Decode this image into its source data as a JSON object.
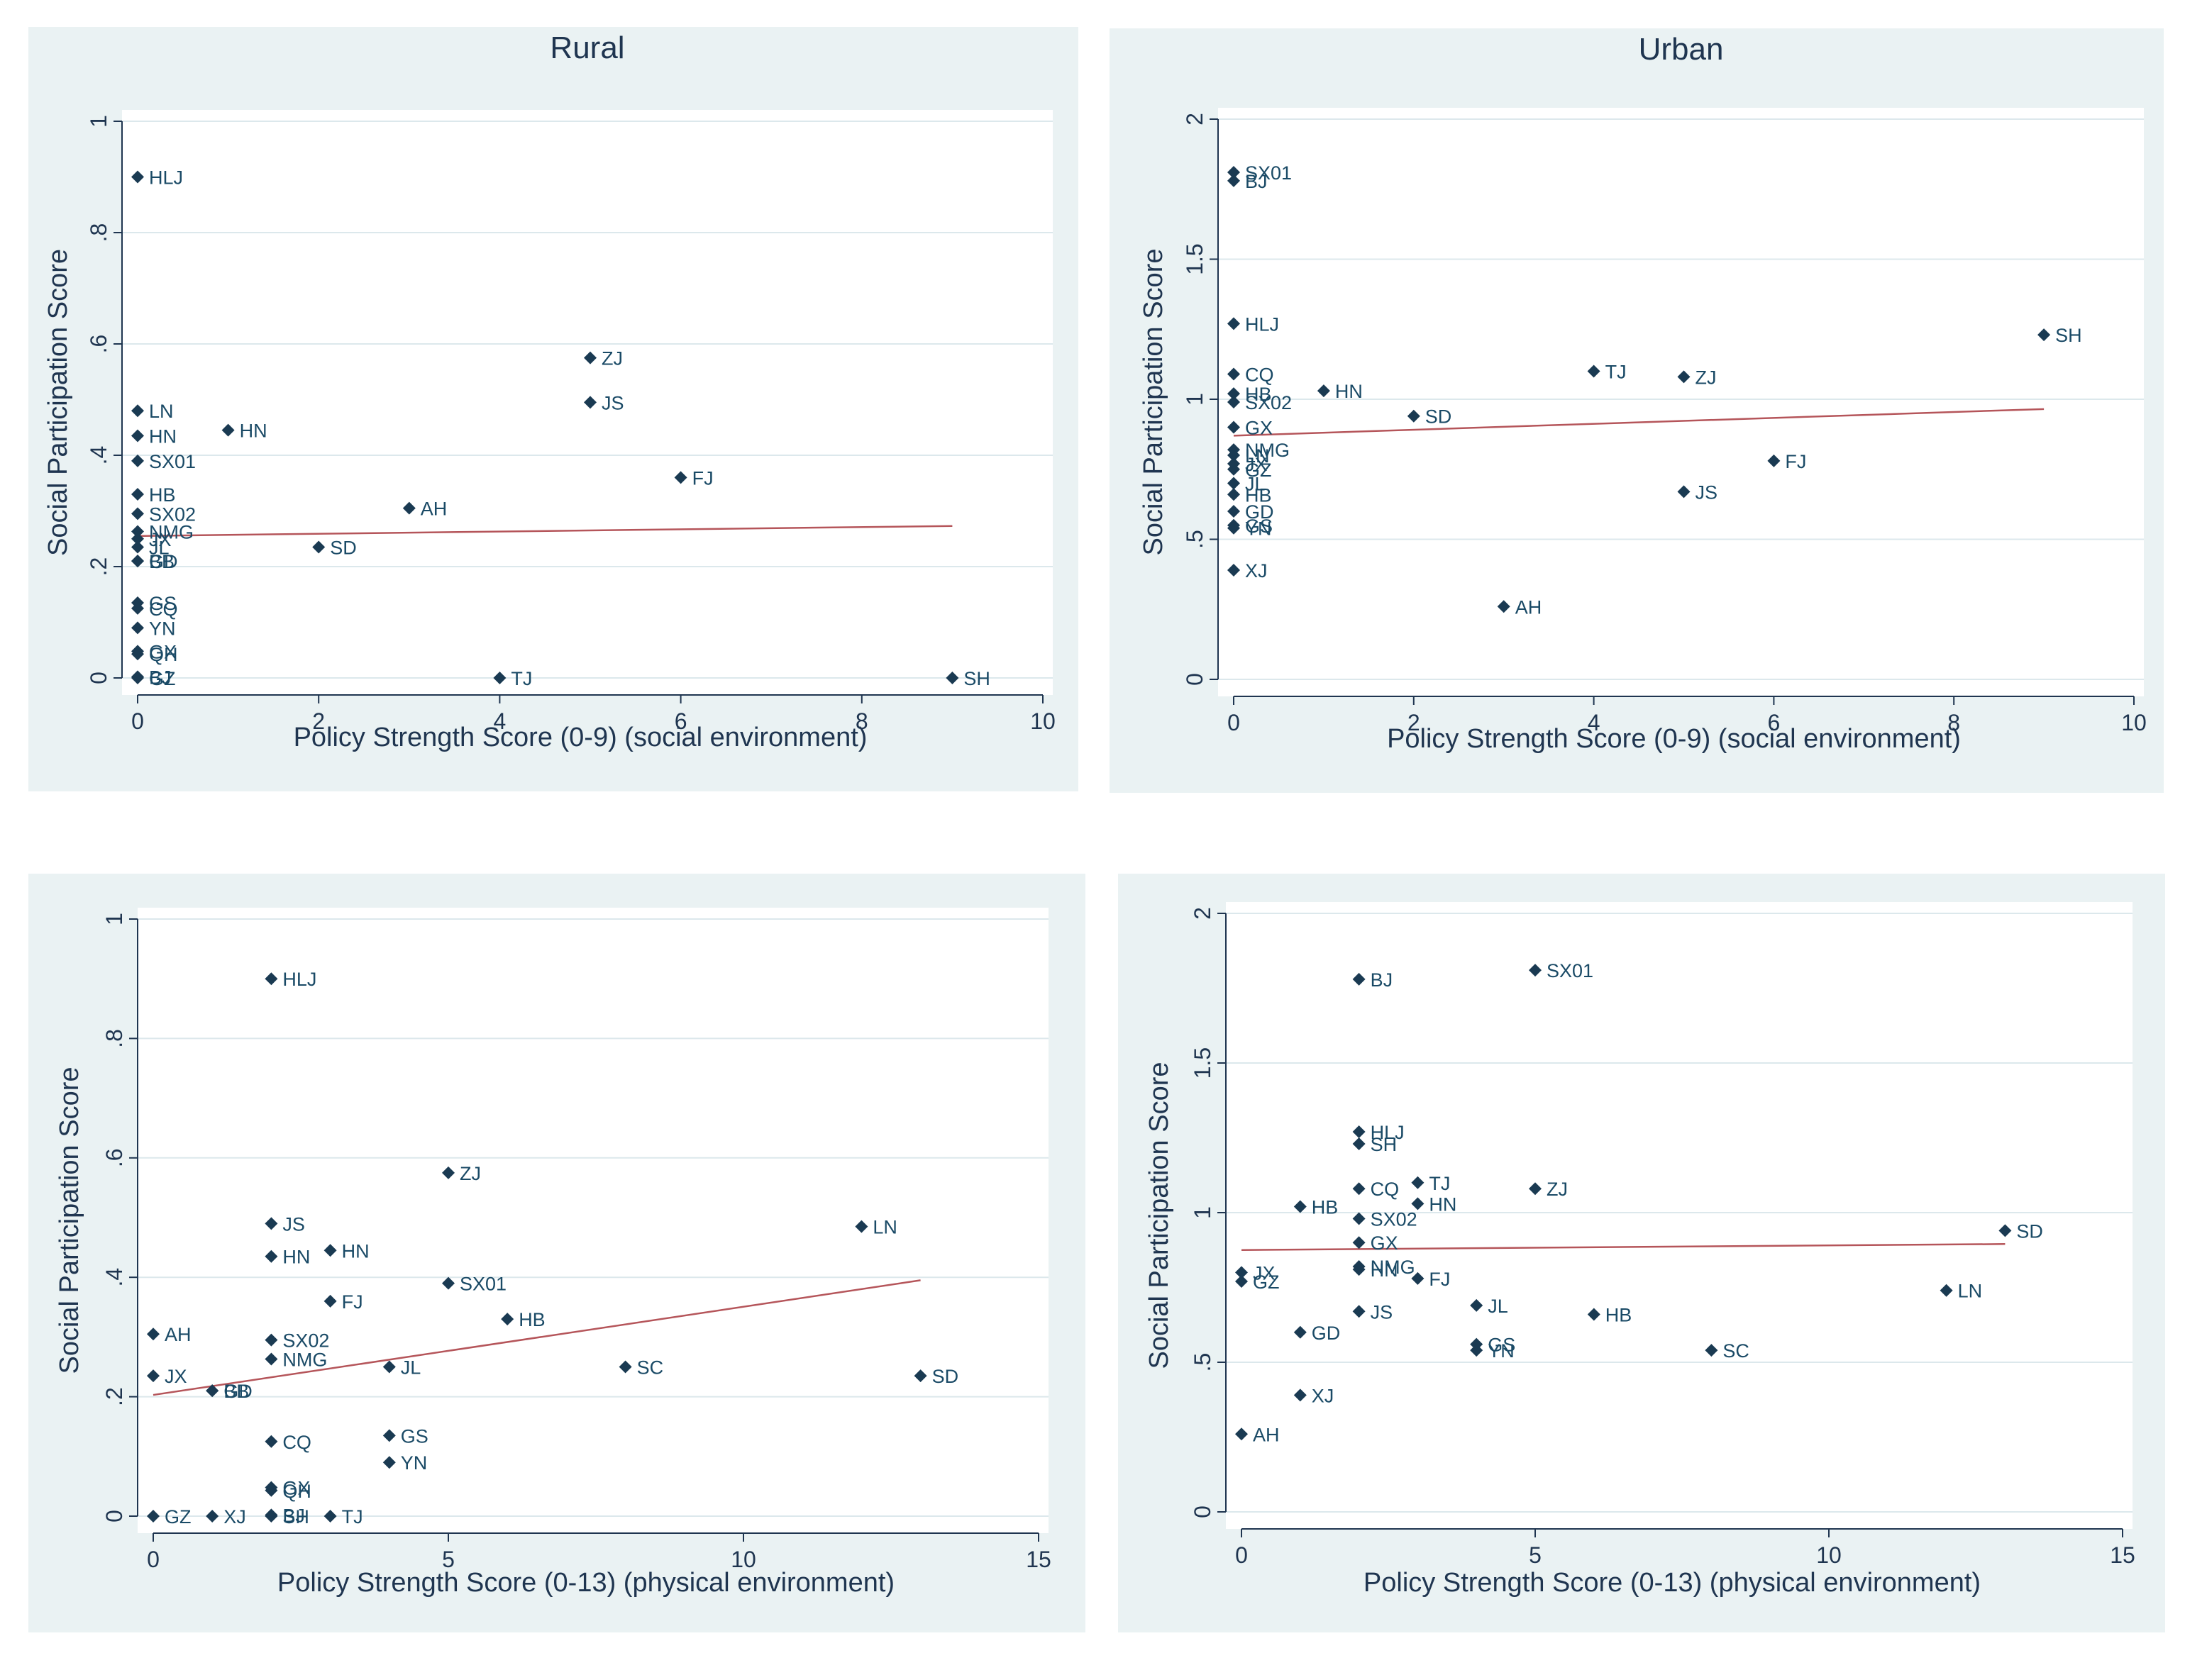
{
  "chart_data": [
    {
      "type": "scatter",
      "title": "Rural",
      "xlabel": "Policy Strength Score (0-9)  (social environment)",
      "ylabel": "Social Participation Score",
      "xlim": [
        0,
        10
      ],
      "ylim": [
        0,
        1
      ],
      "xticks": [
        {
          "v": 0,
          "label": "0"
        },
        {
          "v": 2,
          "label": "2"
        },
        {
          "v": 4,
          "label": "4"
        },
        {
          "v": 6,
          "label": "6"
        },
        {
          "v": 8,
          "label": "8"
        },
        {
          "v": 10,
          "label": "10"
        }
      ],
      "yticks": [
        {
          "v": 0,
          "label": "0"
        },
        {
          "v": 0.2,
          "label": ".2"
        },
        {
          "v": 0.4,
          "label": ".4"
        },
        {
          "v": 0.6,
          "label": ".6"
        },
        {
          "v": 0.8,
          "label": ".8"
        },
        {
          "v": 1,
          "label": "1"
        }
      ],
      "fit": {
        "x0": 0,
        "y0": 0.255,
        "x1": 9,
        "y1": 0.273
      },
      "points": [
        {
          "x": 0,
          "y": 0.9,
          "label": "HLJ"
        },
        {
          "x": 0,
          "y": 0.48,
          "label": "LN"
        },
        {
          "x": 0,
          "y": 0.435,
          "label": "HN"
        },
        {
          "x": 0,
          "y": 0.39,
          "label": "SX01"
        },
        {
          "x": 0,
          "y": 0.33,
          "label": "HB"
        },
        {
          "x": 0,
          "y": 0.295,
          "label": "SX02"
        },
        {
          "x": 0,
          "y": 0.263,
          "label": "NMG"
        },
        {
          "x": 0,
          "y": 0.25,
          "label": "JX"
        },
        {
          "x": 0,
          "y": 0.235,
          "label": "JL"
        },
        {
          "x": 0,
          "y": 0.21,
          "label": "BB"
        },
        {
          "x": 0,
          "y": 0.21,
          "label": "GD"
        },
        {
          "x": 0,
          "y": 0.135,
          "label": "GS"
        },
        {
          "x": 0,
          "y": 0.125,
          "label": "CQ"
        },
        {
          "x": 0,
          "y": 0.09,
          "label": "YN"
        },
        {
          "x": 0,
          "y": 0.048,
          "label": "GX"
        },
        {
          "x": 0,
          "y": 0.043,
          "label": "QH"
        },
        {
          "x": 0,
          "y": 0.002,
          "label": "BJ"
        },
        {
          "x": 0,
          "y": 0.0,
          "label": "GZ"
        },
        {
          "x": 1,
          "y": 0.445,
          "label": "HN"
        },
        {
          "x": 2,
          "y": 0.235,
          "label": "SD"
        },
        {
          "x": 3,
          "y": 0.305,
          "label": "AH"
        },
        {
          "x": 4,
          "y": 0.0,
          "label": "TJ"
        },
        {
          "x": 5,
          "y": 0.575,
          "label": "ZJ"
        },
        {
          "x": 5,
          "y": 0.495,
          "label": "JS"
        },
        {
          "x": 6,
          "y": 0.36,
          "label": "FJ"
        },
        {
          "x": 9,
          "y": 0.0,
          "label": "SH"
        }
      ]
    },
    {
      "type": "scatter",
      "title": "Urban",
      "xlabel": "Policy Strength Score (0-9)  (social environment)",
      "ylabel": "Social Participation Score",
      "xlim": [
        0,
        10
      ],
      "ylim": [
        0,
        2
      ],
      "xticks": [
        {
          "v": 0,
          "label": "0"
        },
        {
          "v": 2,
          "label": "2"
        },
        {
          "v": 4,
          "label": "4"
        },
        {
          "v": 6,
          "label": "6"
        },
        {
          "v": 8,
          "label": "8"
        },
        {
          "v": 10,
          "label": "10"
        }
      ],
      "yticks": [
        {
          "v": 0,
          "label": "0"
        },
        {
          "v": 0.5,
          "label": ".5"
        },
        {
          "v": 1,
          "label": "1"
        },
        {
          "v": 1.5,
          "label": "1.5"
        },
        {
          "v": 2,
          "label": "2"
        }
      ],
      "fit": {
        "x0": 0,
        "y0": 0.87,
        "x1": 9,
        "y1": 0.965
      },
      "points": [
        {
          "x": 0,
          "y": 1.81,
          "label": "SX01"
        },
        {
          "x": 0,
          "y": 1.78,
          "label": "BJ"
        },
        {
          "x": 0,
          "y": 1.27,
          "label": "HLJ"
        },
        {
          "x": 0,
          "y": 1.09,
          "label": "CQ"
        },
        {
          "x": 0,
          "y": 1.02,
          "label": "HB"
        },
        {
          "x": 0,
          "y": 0.99,
          "label": "SX02"
        },
        {
          "x": 0,
          "y": 0.9,
          "label": "GX"
        },
        {
          "x": 0,
          "y": 0.82,
          "label": "NMG"
        },
        {
          "x": 0,
          "y": 0.8,
          "label": "LN"
        },
        {
          "x": 0,
          "y": 0.77,
          "label": "JX"
        },
        {
          "x": 0,
          "y": 0.75,
          "label": "GZ"
        },
        {
          "x": 0,
          "y": 0.7,
          "label": "JL"
        },
        {
          "x": 0,
          "y": 0.66,
          "label": "HB"
        },
        {
          "x": 0,
          "y": 0.6,
          "label": "GD"
        },
        {
          "x": 0,
          "y": 0.55,
          "label": "GS"
        },
        {
          "x": 0,
          "y": 0.54,
          "label": "YN"
        },
        {
          "x": 0,
          "y": 0.39,
          "label": "XJ"
        },
        {
          "x": 1,
          "y": 1.03,
          "label": "HN"
        },
        {
          "x": 2,
          "y": 0.94,
          "label": "SD"
        },
        {
          "x": 3,
          "y": 0.26,
          "label": "AH"
        },
        {
          "x": 4,
          "y": 1.1,
          "label": "TJ"
        },
        {
          "x": 5,
          "y": 1.08,
          "label": "ZJ"
        },
        {
          "x": 5,
          "y": 0.67,
          "label": "JS"
        },
        {
          "x": 6,
          "y": 0.78,
          "label": "FJ"
        },
        {
          "x": 9,
          "y": 1.23,
          "label": "SH"
        }
      ]
    },
    {
      "type": "scatter",
      "title": "",
      "xlabel": "Policy Strength Score (0-13)  (physical environment)",
      "ylabel": "Social Participation Score",
      "xlim": [
        0,
        15
      ],
      "ylim": [
        0,
        1
      ],
      "xticks": [
        {
          "v": 0,
          "label": "0"
        },
        {
          "v": 5,
          "label": "5"
        },
        {
          "v": 10,
          "label": "10"
        },
        {
          "v": 15,
          "label": "15"
        }
      ],
      "yticks": [
        {
          "v": 0,
          "label": "0"
        },
        {
          "v": 0.2,
          "label": ".2"
        },
        {
          "v": 0.4,
          "label": ".4"
        },
        {
          "v": 0.6,
          "label": ".6"
        },
        {
          "v": 0.8,
          "label": ".8"
        },
        {
          "v": 1,
          "label": "1"
        }
      ],
      "fit": {
        "x0": 0,
        "y0": 0.203,
        "x1": 13,
        "y1": 0.395
      },
      "points": [
        {
          "x": 2,
          "y": 0.9,
          "label": "HLJ"
        },
        {
          "x": 5,
          "y": 0.575,
          "label": "ZJ"
        },
        {
          "x": 2,
          "y": 0.49,
          "label": "JS"
        },
        {
          "x": 12,
          "y": 0.485,
          "label": "LN"
        },
        {
          "x": 3,
          "y": 0.445,
          "label": "HN"
        },
        {
          "x": 2,
          "y": 0.435,
          "label": "HN"
        },
        {
          "x": 5,
          "y": 0.39,
          "label": "SX01"
        },
        {
          "x": 3,
          "y": 0.36,
          "label": "FJ"
        },
        {
          "x": 6,
          "y": 0.33,
          "label": "HB"
        },
        {
          "x": 0,
          "y": 0.305,
          "label": "AH"
        },
        {
          "x": 2,
          "y": 0.295,
          "label": "SX02"
        },
        {
          "x": 2,
          "y": 0.263,
          "label": "NMG"
        },
        {
          "x": 4,
          "y": 0.25,
          "label": "JL"
        },
        {
          "x": 8,
          "y": 0.25,
          "label": "SC"
        },
        {
          "x": 0,
          "y": 0.235,
          "label": "JX"
        },
        {
          "x": 13,
          "y": 0.235,
          "label": "SD"
        },
        {
          "x": 1,
          "y": 0.21,
          "label": "BB"
        },
        {
          "x": 1,
          "y": 0.21,
          "label": "GD"
        },
        {
          "x": 4,
          "y": 0.135,
          "label": "GS"
        },
        {
          "x": 2,
          "y": 0.125,
          "label": "CQ"
        },
        {
          "x": 4,
          "y": 0.09,
          "label": "YN"
        },
        {
          "x": 2,
          "y": 0.048,
          "label": "GX"
        },
        {
          "x": 2,
          "y": 0.043,
          "label": "QH"
        },
        {
          "x": 0,
          "y": 0.0,
          "label": "GZ"
        },
        {
          "x": 1,
          "y": 0.0,
          "label": "XJ"
        },
        {
          "x": 2,
          "y": 0.002,
          "label": "BJ"
        },
        {
          "x": 2,
          "y": 0.0,
          "label": "SH"
        },
        {
          "x": 3,
          "y": 0.0,
          "label": "TJ"
        }
      ]
    },
    {
      "type": "scatter",
      "title": "",
      "xlabel": "Policy Strength Score (0-13)  (physical environment)",
      "ylabel": "Social Participation Score",
      "xlim": [
        0,
        15
      ],
      "ylim": [
        0,
        2
      ],
      "xticks": [
        {
          "v": 0,
          "label": "0"
        },
        {
          "v": 5,
          "label": "5"
        },
        {
          "v": 10,
          "label": "10"
        },
        {
          "v": 15,
          "label": "15"
        }
      ],
      "yticks": [
        {
          "v": 0,
          "label": "0"
        },
        {
          "v": 0.5,
          "label": ".5"
        },
        {
          "v": 1,
          "label": "1"
        },
        {
          "v": 1.5,
          "label": "1.5"
        },
        {
          "v": 2,
          "label": "2"
        }
      ],
      "fit": {
        "x0": 0,
        "y0": 0.875,
        "x1": 13,
        "y1": 0.895
      },
      "points": [
        {
          "x": 5,
          "y": 1.81,
          "label": "SX01"
        },
        {
          "x": 2,
          "y": 1.78,
          "label": "BJ"
        },
        {
          "x": 2,
          "y": 1.27,
          "label": "HLJ"
        },
        {
          "x": 2,
          "y": 1.23,
          "label": "SH"
        },
        {
          "x": 2,
          "y": 1.08,
          "label": "CQ"
        },
        {
          "x": 3,
          "y": 1.1,
          "label": "TJ"
        },
        {
          "x": 5,
          "y": 1.08,
          "label": "ZJ"
        },
        {
          "x": 3,
          "y": 1.03,
          "label": "HN"
        },
        {
          "x": 1,
          "y": 1.02,
          "label": "HB"
        },
        {
          "x": 2,
          "y": 0.98,
          "label": "SX02"
        },
        {
          "x": 13,
          "y": 0.94,
          "label": "SD"
        },
        {
          "x": 2,
          "y": 0.9,
          "label": "GX"
        },
        {
          "x": 2,
          "y": 0.82,
          "label": "NMG"
        },
        {
          "x": 2,
          "y": 0.81,
          "label": "HN"
        },
        {
          "x": 0,
          "y": 0.8,
          "label": "JX"
        },
        {
          "x": 3,
          "y": 0.78,
          "label": "FJ"
        },
        {
          "x": 0,
          "y": 0.77,
          "label": "GZ"
        },
        {
          "x": 12,
          "y": 0.74,
          "label": "LN"
        },
        {
          "x": 4,
          "y": 0.69,
          "label": "JL"
        },
        {
          "x": 2,
          "y": 0.67,
          "label": "JS"
        },
        {
          "x": 6,
          "y": 0.66,
          "label": "HB"
        },
        {
          "x": 1,
          "y": 0.6,
          "label": "GD"
        },
        {
          "x": 4,
          "y": 0.56,
          "label": "GS"
        },
        {
          "x": 4,
          "y": 0.54,
          "label": "YN"
        },
        {
          "x": 8,
          "y": 0.54,
          "label": "SC"
        },
        {
          "x": 1,
          "y": 0.39,
          "label": "XJ"
        },
        {
          "x": 0,
          "y": 0.26,
          "label": "AH"
        }
      ]
    }
  ],
  "colors": {
    "panel_bg": "#eaf2f3",
    "plot_bg": "#ffffff",
    "grid": "#dce8ec",
    "axis": "#1f3550",
    "marker": "#1a3a52",
    "label": "#1a4a66",
    "fit_line": "#b5555a"
  }
}
